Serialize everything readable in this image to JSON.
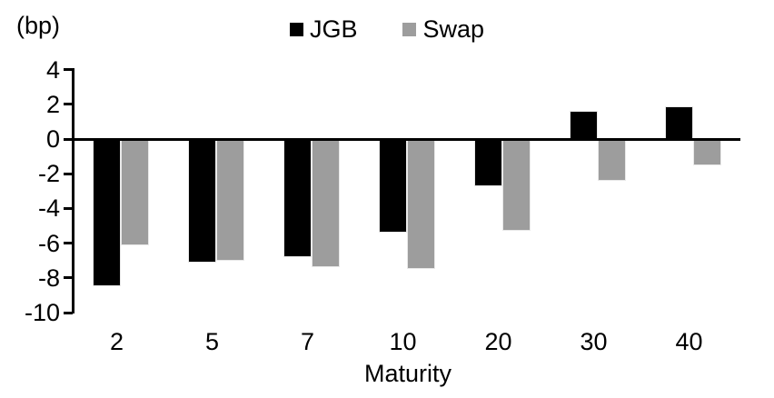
{
  "chart_data": {
    "type": "bar",
    "title": "",
    "unit_label": "(bp)",
    "xlabel": "Maturity",
    "ylabel": "(bp)",
    "categories": [
      "2",
      "5",
      "7",
      "10",
      "20",
      "30",
      "40"
    ],
    "series": [
      {
        "name": "JGB",
        "color": "#000000",
        "values": [
          -8.5,
          -7.1,
          -6.8,
          -5.4,
          -2.7,
          1.6,
          1.9
        ]
      },
      {
        "name": "Swap",
        "color": "#9d9d9d",
        "values": [
          -6.1,
          -7.0,
          -7.4,
          -7.5,
          -5.3,
          -2.4,
          -1.5
        ]
      }
    ],
    "yticks": [
      4,
      2,
      0,
      -2,
      -4,
      -6,
      -8,
      -10
    ],
    "ylim": [
      -10,
      4
    ],
    "grid": false,
    "legend_position": "top-center",
    "axis_color": "#000000",
    "background_color": "#ffffff"
  }
}
